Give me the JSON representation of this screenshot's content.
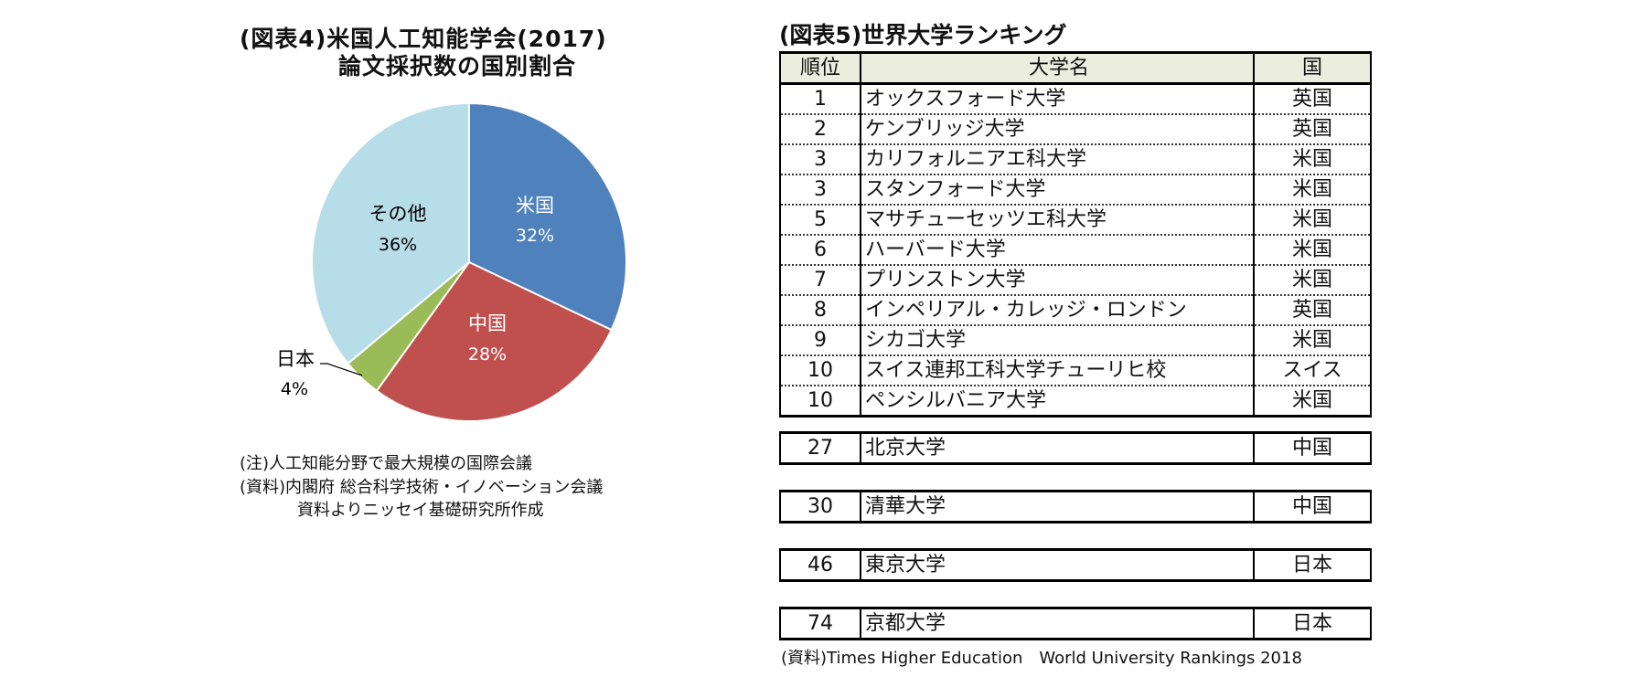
{
  "figure4": {
    "title_line1": "(図表4)米国人工知能学会(2017)",
    "title_line2": "論文採択数の国別割合",
    "notes": [
      "(注)人工知能分野で最大規模の国際会議",
      "(資料)内閣府 総合科学技術・イノベーション会議",
      "資料よりニッセイ基礎研究所作成"
    ]
  },
  "chart_data": {
    "type": "pie",
    "title": "(図表4)米国人工知能学会(2017) 論文採択数の国別割合",
    "categories": [
      "米国",
      "中国",
      "日本",
      "その他"
    ],
    "values": [
      32,
      28,
      4,
      36
    ],
    "unit": "%",
    "colors": [
      "#4F81BD",
      "#C0504D",
      "#9BBB59",
      "#B7DDE8"
    ],
    "labels": [
      "米国",
      "中国",
      "日本",
      "その他"
    ],
    "label_values": [
      "32%",
      "28%",
      "4%",
      "36%"
    ],
    "start_angle": "12 o'clock, clockwise",
    "annotations": [
      "(注)人工知能分野で最大規模の国際会議",
      "(資料)内閣府 総合科学技術・イノベーション会議 資料よりニッセイ基礎研究所作成"
    ]
  },
  "figure5": {
    "title": "(図表5)世界大学ランキング",
    "headers": {
      "rank": "順位",
      "name": "大学名",
      "country": "国"
    },
    "rows": [
      {
        "rank": "1",
        "name": "オックスフォード大学",
        "country": "英国"
      },
      {
        "rank": "2",
        "name": "ケンブリッジ大学",
        "country": "英国"
      },
      {
        "rank": "3",
        "name": "カリフォルニアエ科大学",
        "country": "米国"
      },
      {
        "rank": "3",
        "name": "スタンフォード大学",
        "country": "米国"
      },
      {
        "rank": "5",
        "name": "マサチューセッツエ科大学",
        "country": "米国"
      },
      {
        "rank": "6",
        "name": "ハーバード大学",
        "country": "米国"
      },
      {
        "rank": "7",
        "name": "プリンストン大学",
        "country": "米国"
      },
      {
        "rank": "8",
        "name": "インペリアル・カレッジ・ロンドン",
        "country": "英国"
      },
      {
        "rank": "9",
        "name": "シカゴ大学",
        "country": "米国"
      },
      {
        "rank": "10",
        "name": "スイス連邦工科大学チューリヒ校",
        "country": "スイス"
      },
      {
        "rank": "10",
        "name": "ペンシルバニア大学",
        "country": "米国"
      }
    ],
    "extra_rows": [
      {
        "rank": "27",
        "name": "北京大学",
        "country": "中国"
      },
      {
        "rank": "30",
        "name": "清華大学",
        "country": "中国"
      },
      {
        "rank": "46",
        "name": "東京大学",
        "country": "日本"
      },
      {
        "rank": "74",
        "name": "京都大学",
        "country": "日本"
      }
    ],
    "source": "(資料)Times Higher Education　World University Rankings 2018",
    "header_bg": "#EBEDDE"
  }
}
